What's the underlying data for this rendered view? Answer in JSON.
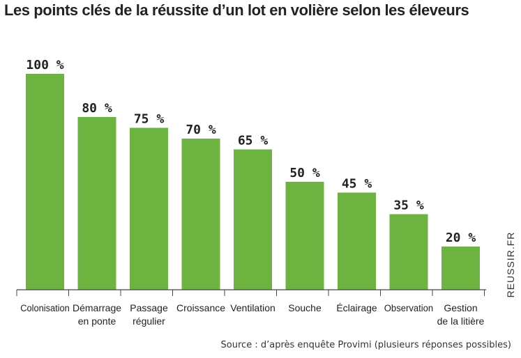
{
  "chart_data": {
    "type": "bar",
    "title": "Les points clés de la réussite d’un lot en volière selon les éleveurs",
    "categories": [
      [
        "Colonisation"
      ],
      [
        "Démarrage",
        "en ponte"
      ],
      [
        "Passage",
        "régulier"
      ],
      [
        "Croissance"
      ],
      [
        "Ventilation"
      ],
      [
        "Souche"
      ],
      [
        "Éclairage"
      ],
      [
        "Observation"
      ],
      [
        "Gestion",
        "de la litière"
      ]
    ],
    "values": [
      100,
      80,
      75,
      70,
      65,
      50,
      45,
      35,
      20
    ],
    "value_labels": [
      "100 %",
      "80 %",
      "75 %",
      "70 %",
      "65 %",
      "50 %",
      "45 %",
      "35 %",
      "20 %"
    ],
    "unit": "%",
    "ylim": [
      0,
      100
    ],
    "grid": false,
    "bar_color": "#6db33f",
    "source": "Source : d’après enquête Provimi (plusieurs réponses possibles)",
    "watermark": "REUSSIR.FR"
  }
}
